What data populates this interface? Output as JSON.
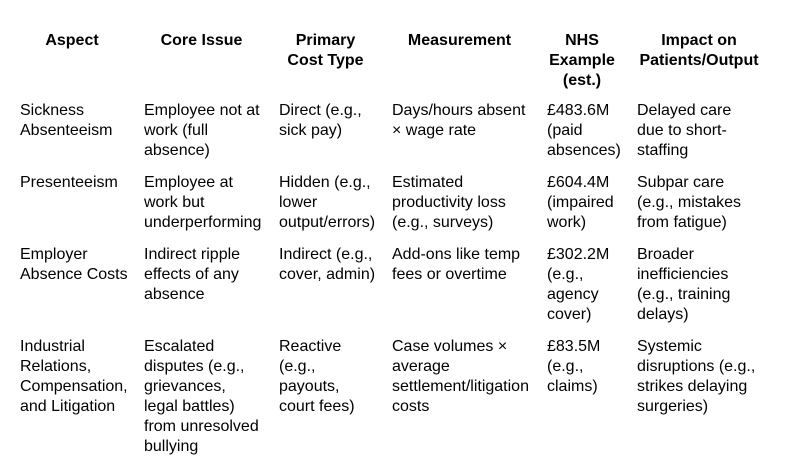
{
  "table": {
    "headers": [
      "Aspect",
      "Core Issue",
      "Primary\nCost Type",
      "Measurement",
      "NHS\nExample\n(est.)",
      "Impact on\nPatients/Output"
    ],
    "rows": [
      [
        "Sickness\nAbsenteeism",
        "Employee not at\nwork (full\nabsence)",
        "Direct (e.g.,\nsick pay)",
        "Days/hours absent\n× wage rate",
        "£483.6M\n(paid\nabsences)",
        "Delayed care\ndue to short-\nstaffing"
      ],
      [
        "Presenteeism",
        "Employee at\nwork but\nunderperforming",
        "Hidden (e.g.,\nlower\noutput/errors)",
        "Estimated\nproductivity loss\n(e.g., surveys)",
        "£604.4M\n(impaired\nwork)",
        "Subpar care\n(e.g., mistakes\nfrom fatigue)"
      ],
      [
        "Employer\nAbsence Costs",
        "Indirect ripple\neffects of any\nabsence",
        "Indirect (e.g.,\ncover, admin)",
        "Add-ons like temp\nfees or overtime",
        "£302.2M\n(e.g.,\nagency\ncover)",
        "Broader\ninefficiencies\n(e.g., training\ndelays)"
      ],
      [
        "Industrial\nRelations,\nCompensation,\nand Litigation",
        "Escalated\ndisputes (e.g.,\ngrievances,\nlegal battles)\nfrom unresolved\nbullying",
        "Reactive\n(e.g.,\npayouts,\ncourt fees)",
        "Case volumes ×\naverage\nsettlement/litigation\ncosts",
        "£83.5M\n(e.g.,\nclaims)",
        "Systemic\ndisruptions (e.g.,\nstrikes delaying\nsurgeries)"
      ]
    ],
    "text_color": "#000000",
    "background_color": "#ffffff"
  },
  "chart_data": {
    "type": "table",
    "columns": [
      "Aspect",
      "Core Issue",
      "Primary Cost Type",
      "Measurement",
      "NHS Example (est.)",
      "Impact on Patients/Output"
    ],
    "rows": [
      [
        "Sickness Absenteeism",
        "Employee not at work (full absence)",
        "Direct (e.g., sick pay)",
        "Days/hours absent × wage rate",
        "£483.6M (paid absences)",
        "Delayed care due to short-staffing"
      ],
      [
        "Presenteeism",
        "Employee at work but underperforming",
        "Hidden (e.g., lower output/errors)",
        "Estimated productivity loss (e.g., surveys)",
        "£604.4M (impaired work)",
        "Subpar care (e.g., mistakes from fatigue)"
      ],
      [
        "Employer Absence Costs",
        "Indirect ripple effects of any absence",
        "Indirect (e.g., cover, admin)",
        "Add-ons like temp fees or overtime",
        "£302.2M (e.g., agency cover)",
        "Broader inefficiencies (e.g., training delays)"
      ],
      [
        "Industrial Relations, Compensation, and Litigation",
        "Escalated disputes (e.g., grievances, legal battles) from unresolved bullying",
        "Reactive (e.g., payouts, court fees)",
        "Case volumes × average settlement/litigation costs",
        "£83.5M (e.g., claims)",
        "Systemic disruptions (e.g., strikes delaying surgeries)"
      ]
    ],
    "nhs_values_gbp_millions": [
      483.6,
      604.4,
      302.2,
      83.5
    ]
  }
}
